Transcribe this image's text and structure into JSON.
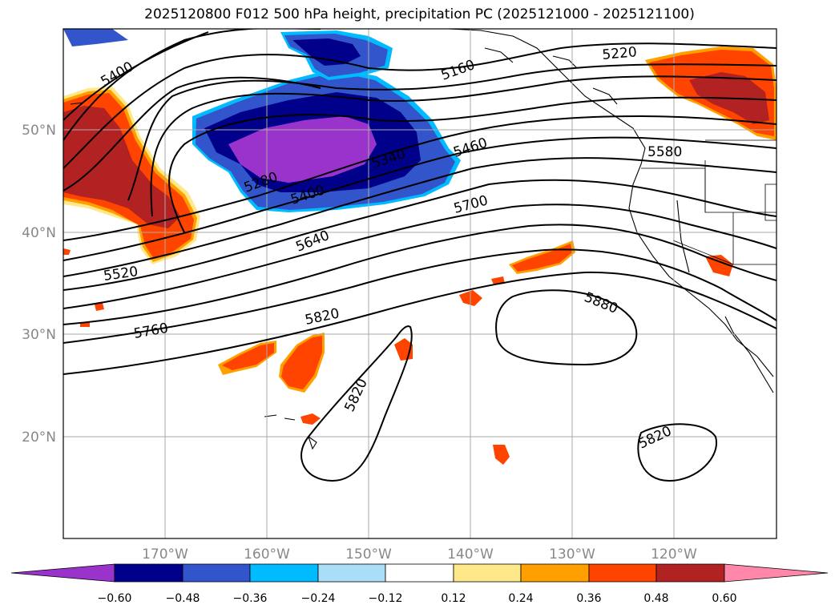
{
  "title": "2025120800 F012 500 hPa height, precipitation PC (2025121000 - 2025121100)",
  "longitude_labels": [
    "170°W",
    "160°W",
    "150°W",
    "140°W",
    "130°W",
    "120°W"
  ],
  "latitude_labels": [
    "50°N",
    "40°N",
    "30°N",
    "20°N"
  ],
  "contour_labels": [
    "5400",
    "5160",
    "5220",
    "5580",
    "5460",
    "5340",
    "5280",
    "5400",
    "5700",
    "5640",
    "5520",
    "5820",
    "5760",
    "5880",
    "5820",
    "5820"
  ],
  "colorbar": {
    "ticks": [
      "−0.60",
      "−0.48",
      "−0.36",
      "−0.24",
      "−0.12",
      "0.12",
      "0.24",
      "0.36",
      "0.48",
      "0.60"
    ],
    "colors": [
      "#9933cc",
      "#00008b",
      "#3355cc",
      "#00bbff",
      "#aaddf8",
      "#ffffff",
      "#ffe88a",
      "#ffa000",
      "#ff4400",
      "#b22222",
      "#ff88aa"
    ]
  },
  "colors": {
    "warm_core": "#b22222",
    "warm_main": "#ff4400",
    "warm_edge": "#ffa000",
    "warm_fringe": "#ffe88a",
    "cool_core": "#9933cc",
    "cool_deep": "#00008b",
    "cool_main": "#3355cc",
    "cool_edge": "#00bbff"
  }
}
